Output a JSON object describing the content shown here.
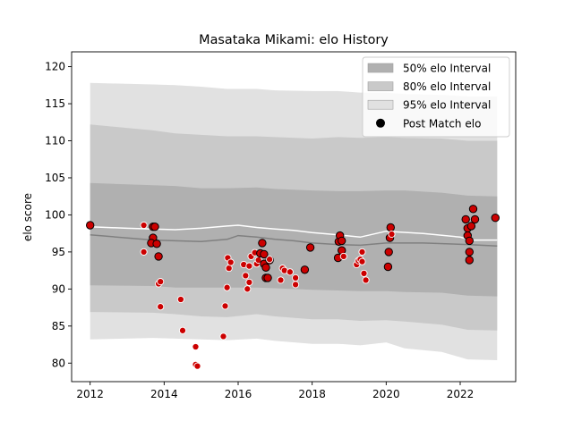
{
  "chart_data": {
    "type": "area",
    "title": "Masataka Mikami: elo History",
    "xlabel": "",
    "ylabel": "elo score",
    "xlim": [
      2011.5,
      2023.5
    ],
    "ylim": [
      77.5,
      122
    ],
    "xticks": [
      2012,
      2014,
      2016,
      2018,
      2020,
      2022
    ],
    "yticks": [
      80,
      85,
      90,
      95,
      100,
      105,
      110,
      115,
      120
    ],
    "grid": false,
    "legend_position": "top-right",
    "legend": [
      {
        "label": "50% elo Interval",
        "kind": "patch",
        "color": "#b0b0b0"
      },
      {
        "label": "80% elo Interval",
        "kind": "patch",
        "color": "#c9c9c9"
      },
      {
        "label": "95% elo Interval",
        "kind": "patch",
        "color": "#e1e1e1"
      },
      {
        "label": "Post Match elo",
        "kind": "marker",
        "color": "#000000"
      }
    ],
    "colors": {
      "band95": "#e1e1e1",
      "band80": "#c9c9c9",
      "band50": "#b0b0b0",
      "mean_line": "#808080",
      "median_line": "#ffffff",
      "point_fill": "#cc0000"
    },
    "band_x": [
      2012.0,
      2013.7,
      2014.3,
      2015.0,
      2015.7,
      2016.5,
      2017.0,
      2018.0,
      2018.7,
      2019.3,
      2020.0,
      2020.5,
      2021.5,
      2022.2,
      2023.0
    ],
    "band95": {
      "upper": [
        117.8,
        117.6,
        117.5,
        117.3,
        117.0,
        117.0,
        116.8,
        116.7,
        116.7,
        116.5,
        116.5,
        116.3,
        116.2,
        116.0,
        116.0
      ],
      "lower": [
        83.2,
        83.4,
        83.3,
        83.2,
        83.1,
        83.3,
        83.0,
        82.6,
        82.6,
        82.4,
        82.8,
        82.0,
        81.5,
        80.5,
        80.4
      ]
    },
    "band80": {
      "upper": [
        112.2,
        111.4,
        111.0,
        110.8,
        110.6,
        110.6,
        110.5,
        110.3,
        110.5,
        110.4,
        110.5,
        110.4,
        110.3,
        110.0,
        110.0
      ],
      "lower": [
        86.9,
        86.8,
        86.6,
        86.3,
        86.2,
        86.6,
        86.3,
        85.9,
        85.9,
        85.7,
        85.8,
        85.6,
        85.2,
        84.5,
        84.4
      ]
    },
    "band50": {
      "upper": [
        104.3,
        104.0,
        103.9,
        103.6,
        103.6,
        103.7,
        103.5,
        103.3,
        103.2,
        103.2,
        103.3,
        103.3,
        103.0,
        102.6,
        102.5
      ],
      "lower": [
        90.5,
        90.4,
        90.2,
        90.2,
        90.2,
        90.2,
        90.1,
        89.9,
        89.8,
        89.7,
        89.7,
        89.6,
        89.5,
        89.1,
        89.0
      ]
    },
    "mean_line": {
      "x": [
        2012.0,
        2013.7,
        2014.3,
        2015.0,
        2015.7,
        2016.0,
        2016.5,
        2017.0,
        2017.5,
        2018.0,
        2018.7,
        2019.3,
        2020.0,
        2021.0,
        2022.2,
        2023.0
      ],
      "y": [
        97.3,
        96.6,
        96.5,
        96.4,
        96.7,
        97.2,
        97.0,
        96.7,
        96.5,
        96.2,
        96.0,
        95.9,
        96.2,
        96.2,
        96.0,
        95.8
      ]
    },
    "median_line": {
      "x": [
        2012.0,
        2013.0,
        2013.7,
        2014.3,
        2015.0,
        2015.7,
        2016.0,
        2016.5,
        2017.0,
        2017.5,
        2018.0,
        2018.7,
        2019.3,
        2020.0,
        2021.0,
        2022.0,
        2022.3,
        2023.0
      ],
      "y": [
        98.4,
        98.2,
        98.1,
        98.0,
        98.2,
        98.5,
        98.6,
        98.3,
        98.1,
        97.9,
        97.6,
        97.3,
        97.0,
        97.8,
        97.5,
        97.0,
        96.6,
        96.6
      ]
    },
    "points": [
      {
        "x": 2012.0,
        "y": 98.6,
        "o": true
      },
      {
        "x": 2013.45,
        "y": 98.6,
        "o": false
      },
      {
        "x": 2013.45,
        "y": 95.0,
        "o": false
      },
      {
        "x": 2013.7,
        "y": 98.4,
        "o": true
      },
      {
        "x": 2013.75,
        "y": 98.4,
        "o": true
      },
      {
        "x": 2013.7,
        "y": 96.9,
        "o": true
      },
      {
        "x": 2013.65,
        "y": 96.2,
        "o": true
      },
      {
        "x": 2013.8,
        "y": 96.1,
        "o": true
      },
      {
        "x": 2013.85,
        "y": 94.4,
        "o": true
      },
      {
        "x": 2013.85,
        "y": 90.7,
        "o": false
      },
      {
        "x": 2013.9,
        "y": 91.0,
        "o": false
      },
      {
        "x": 2013.9,
        "y": 87.6,
        "o": false
      },
      {
        "x": 2014.45,
        "y": 88.6,
        "o": false
      },
      {
        "x": 2014.5,
        "y": 84.4,
        "o": false
      },
      {
        "x": 2014.85,
        "y": 82.2,
        "o": false
      },
      {
        "x": 2014.85,
        "y": 79.8,
        "o": false
      },
      {
        "x": 2014.9,
        "y": 79.6,
        "o": false
      },
      {
        "x": 2015.6,
        "y": 83.6,
        "o": false
      },
      {
        "x": 2015.65,
        "y": 87.7,
        "o": false
      },
      {
        "x": 2015.7,
        "y": 90.2,
        "o": false
      },
      {
        "x": 2015.72,
        "y": 94.2,
        "o": false
      },
      {
        "x": 2015.75,
        "y": 92.8,
        "o": false
      },
      {
        "x": 2015.8,
        "y": 93.6,
        "o": false
      },
      {
        "x": 2016.15,
        "y": 93.3,
        "o": false
      },
      {
        "x": 2016.2,
        "y": 91.8,
        "o": false
      },
      {
        "x": 2016.25,
        "y": 90.0,
        "o": false
      },
      {
        "x": 2016.3,
        "y": 90.9,
        "o": false
      },
      {
        "x": 2016.3,
        "y": 93.1,
        "o": false
      },
      {
        "x": 2016.35,
        "y": 94.4,
        "o": false
      },
      {
        "x": 2016.45,
        "y": 94.9,
        "o": false
      },
      {
        "x": 2016.5,
        "y": 93.4,
        "o": false
      },
      {
        "x": 2016.55,
        "y": 93.9,
        "o": false
      },
      {
        "x": 2016.6,
        "y": 94.8,
        "o": true
      },
      {
        "x": 2016.65,
        "y": 96.2,
        "o": true
      },
      {
        "x": 2016.7,
        "y": 94.7,
        "o": true
      },
      {
        "x": 2016.7,
        "y": 93.4,
        "o": true
      },
      {
        "x": 2016.75,
        "y": 92.9,
        "o": true
      },
      {
        "x": 2016.75,
        "y": 91.5,
        "o": true
      },
      {
        "x": 2016.85,
        "y": 93.9,
        "o": true
      },
      {
        "x": 2016.8,
        "y": 91.5,
        "o": true
      },
      {
        "x": 2016.85,
        "y": 94.0,
        "o": false
      },
      {
        "x": 2017.15,
        "y": 91.2,
        "o": false
      },
      {
        "x": 2017.2,
        "y": 92.8,
        "o": false
      },
      {
        "x": 2017.25,
        "y": 92.5,
        "o": false
      },
      {
        "x": 2017.4,
        "y": 92.3,
        "o": false
      },
      {
        "x": 2017.55,
        "y": 91.5,
        "o": false
      },
      {
        "x": 2017.55,
        "y": 90.6,
        "o": false
      },
      {
        "x": 2017.8,
        "y": 92.6,
        "o": true
      },
      {
        "x": 2017.95,
        "y": 95.6,
        "o": true
      },
      {
        "x": 2018.7,
        "y": 94.2,
        "o": true
      },
      {
        "x": 2018.72,
        "y": 96.4,
        "o": true
      },
      {
        "x": 2018.75,
        "y": 97.2,
        "o": true
      },
      {
        "x": 2018.8,
        "y": 96.5,
        "o": true
      },
      {
        "x": 2018.8,
        "y": 95.2,
        "o": true
      },
      {
        "x": 2018.85,
        "y": 94.4,
        "o": false
      },
      {
        "x": 2019.2,
        "y": 93.3,
        "o": false
      },
      {
        "x": 2019.25,
        "y": 93.8,
        "o": false
      },
      {
        "x": 2019.3,
        "y": 94.0,
        "o": false
      },
      {
        "x": 2019.35,
        "y": 95.0,
        "o": false
      },
      {
        "x": 2019.35,
        "y": 93.7,
        "o": false
      },
      {
        "x": 2019.4,
        "y": 92.1,
        "o": false
      },
      {
        "x": 2019.45,
        "y": 91.2,
        "o": false
      },
      {
        "x": 2020.05,
        "y": 93.0,
        "o": true
      },
      {
        "x": 2020.07,
        "y": 95.0,
        "o": true
      },
      {
        "x": 2020.1,
        "y": 96.9,
        "o": true
      },
      {
        "x": 2020.12,
        "y": 98.3,
        "o": true
      },
      {
        "x": 2020.15,
        "y": 97.4,
        "o": false
      },
      {
        "x": 2022.15,
        "y": 99.4,
        "o": true
      },
      {
        "x": 2022.2,
        "y": 98.2,
        "o": true
      },
      {
        "x": 2022.2,
        "y": 97.2,
        "o": true
      },
      {
        "x": 2022.25,
        "y": 96.5,
        "o": true
      },
      {
        "x": 2022.25,
        "y": 95.0,
        "o": true
      },
      {
        "x": 2022.25,
        "y": 93.9,
        "o": true
      },
      {
        "x": 2022.3,
        "y": 98.5,
        "o": true
      },
      {
        "x": 2022.35,
        "y": 100.8,
        "o": true
      },
      {
        "x": 2022.4,
        "y": 99.4,
        "o": true
      },
      {
        "x": 2022.95,
        "y": 99.6,
        "o": true
      }
    ]
  }
}
